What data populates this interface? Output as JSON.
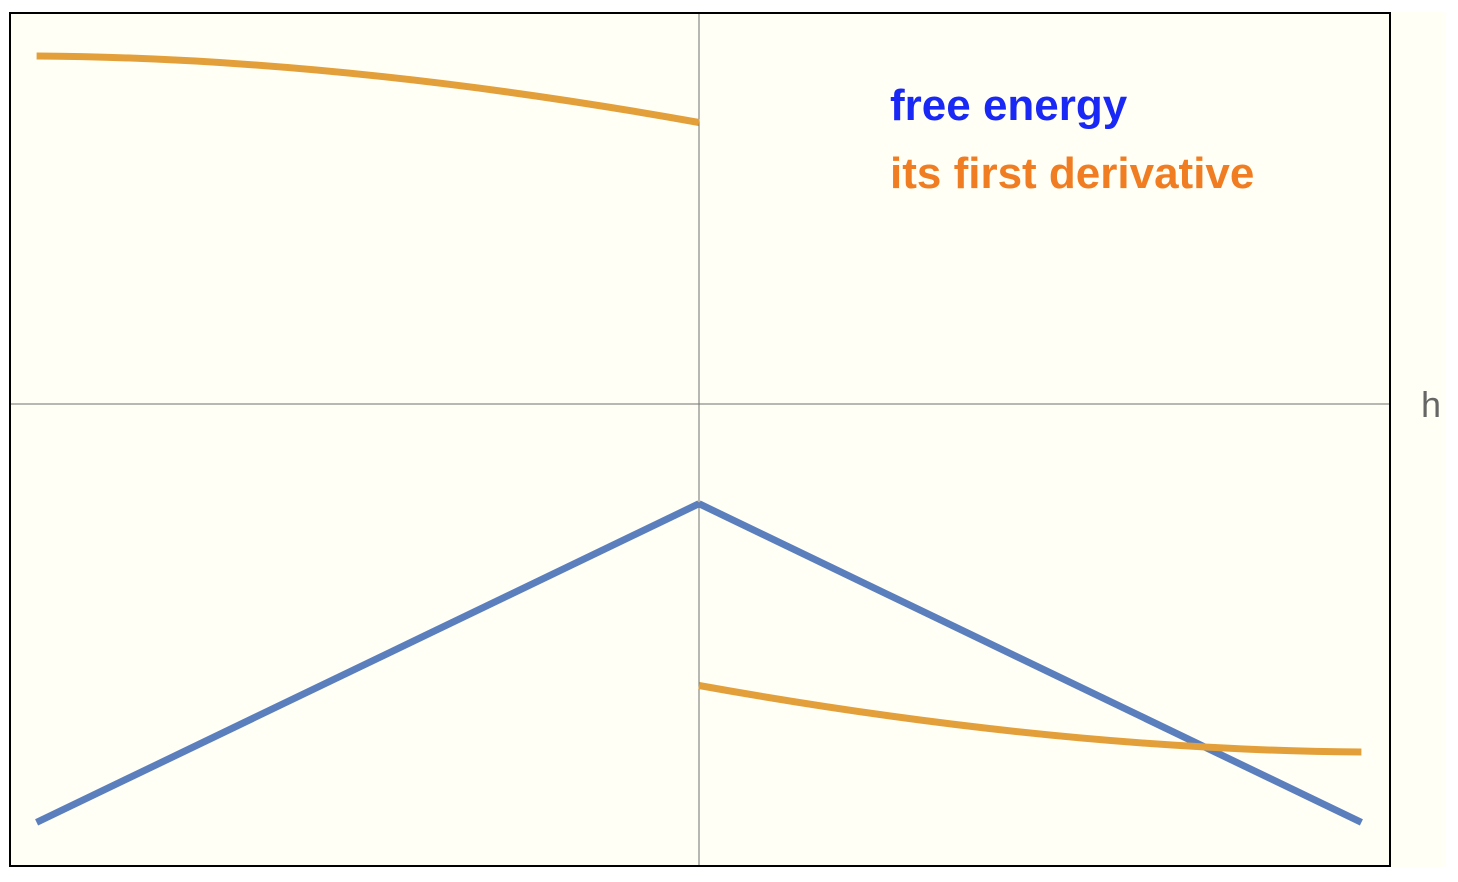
{
  "chart_data": {
    "type": "line",
    "xlabel": "h",
    "ylabel": "",
    "xlim": [
      -1,
      1
    ],
    "ylim": [
      -1.18,
      1
    ],
    "grid": false,
    "legend_position": "top-right",
    "colors": {
      "background": "#fffff5",
      "free_energy_line": "#5b7fbd",
      "derivative_line": "#e3a03a",
      "legend_free_energy": "#1a28f5",
      "legend_derivative": "#f07d22",
      "frame": "#000000",
      "axis": "#707070"
    },
    "series": [
      {
        "name": "free energy",
        "segments": [
          {
            "x": [
              -0.96,
              -0.5,
              0
            ],
            "y": [
              -1.07,
              -0.68,
              -0.255
            ]
          },
          {
            "x": [
              0,
              0.5,
              0.96
            ],
            "y": [
              -0.255,
              -0.68,
              -1.07
            ]
          }
        ]
      },
      {
        "name": "its first derivative",
        "segments": [
          {
            "x": [
              -0.96,
              -0.5,
              0
            ],
            "y": [
              0.89,
              0.845,
              0.72
            ]
          },
          {
            "x": [
              0,
              0.5,
              0.96
            ],
            "y": [
              -0.72,
              -0.845,
              -0.89
            ]
          }
        ]
      }
    ]
  }
}
